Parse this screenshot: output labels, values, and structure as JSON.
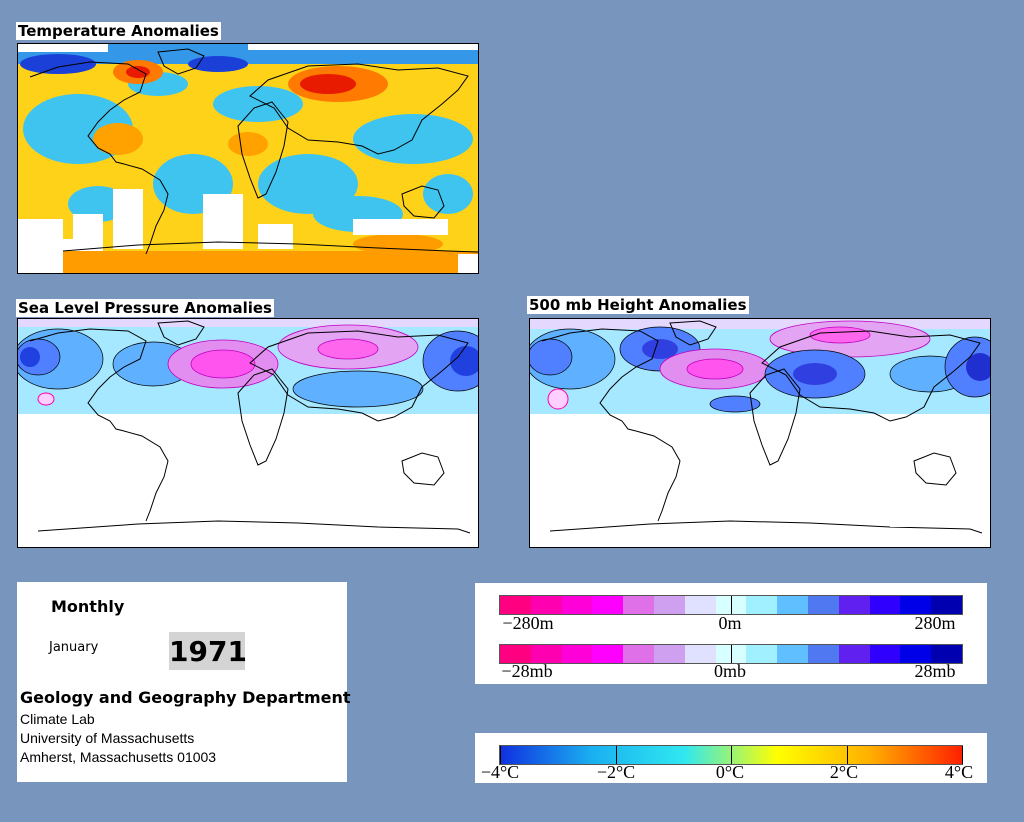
{
  "panels": {
    "temperature": {
      "title": "Temperature Anomalies"
    },
    "slp": {
      "title": "Sea Level Pressure Anomalies"
    },
    "height500": {
      "title": "500 mb Height Anomalies"
    }
  },
  "info": {
    "frequency": "Monthly",
    "month": "January",
    "year": "1971",
    "department": "Geology and Geography Department",
    "lab": "Climate Lab",
    "university": "University of Massachusetts",
    "address": "Amherst, Massachusetts 01003"
  },
  "legends": {
    "height": {
      "labels": [
        "−280m",
        "0m",
        "280m"
      ],
      "colors": [
        "#ff0080",
        "#ff00b0",
        "#ff00d8",
        "#ff00ff",
        "#e070e8",
        "#d0a0f0",
        "#e0e0ff",
        "#d8ffff",
        "#a0f0ff",
        "#60c0ff",
        "#5078f0",
        "#6020f0",
        "#3000ff",
        "#0000e8",
        "#0000b0"
      ]
    },
    "pressure": {
      "labels": [
        "−28mb",
        "0mb",
        "28mb"
      ],
      "colors": [
        "#ff0080",
        "#ff00b0",
        "#ff00d8",
        "#ff00ff",
        "#e070e8",
        "#d0a0f0",
        "#e0e0ff",
        "#d8ffff",
        "#a0f0ff",
        "#60c0ff",
        "#5078f0",
        "#6020f0",
        "#3000ff",
        "#0000e8",
        "#0000b0"
      ]
    },
    "temperature": {
      "labels": [
        "−4°C",
        "−2°C",
        "0°C",
        "2°C",
        "4°C"
      ],
      "colors": [
        "#1030e0",
        "#1ab0f0",
        "#30e8f0",
        "#ffff00",
        "#ffb000",
        "#ff2000"
      ]
    }
  }
}
